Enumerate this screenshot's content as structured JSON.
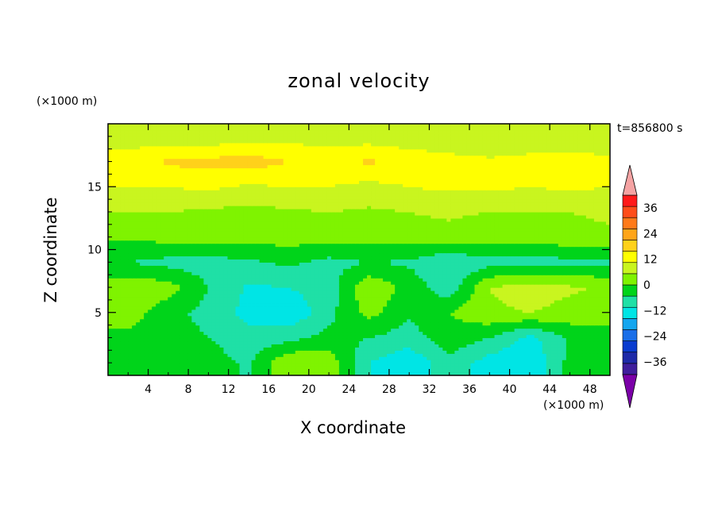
{
  "chart_data": {
    "type": "heatmap",
    "title": "zonal velocity",
    "xlabel": "X coordinate",
    "ylabel": "Z coordinate",
    "x_unit": "(×1000 m)",
    "y_unit": "(×1000 m)",
    "time_label": "t=856800 s",
    "xlim": [
      0,
      50
    ],
    "ylim": [
      0,
      20
    ],
    "x_ticks": [
      4,
      8,
      12,
      16,
      20,
      24,
      28,
      32,
      36,
      40,
      44,
      48
    ],
    "y_ticks": [
      5,
      10,
      15
    ],
    "colorbar": {
      "levels": [
        -42,
        -36,
        -30,
        -24,
        -18,
        -12,
        -6,
        0,
        6,
        12,
        18,
        24,
        30,
        36,
        42
      ],
      "tick_labels": [
        36,
        24,
        12,
        0,
        -12,
        -24,
        -36
      ],
      "colors": [
        "#7b00a8",
        "#3f1e9c",
        "#1e2aa8",
        "#0a3ccf",
        "#1a6fe8",
        "#14a6ef",
        "#00e5e5",
        "#1fe0a6",
        "#00d41a",
        "#7ff300",
        "#c9f51f",
        "#ffff00",
        "#ffd11a",
        "#ffa51a",
        "#ff7a1a",
        "#ff4d1a",
        "#ff1a1a",
        "#f5a3a3"
      ],
      "extend": "both"
    },
    "data_grid": {
      "x": [
        2,
        6,
        10,
        14,
        18,
        22,
        26,
        30,
        34,
        38,
        42,
        46,
        50
      ],
      "z": [
        1,
        3,
        5,
        7,
        9,
        11,
        13,
        15,
        17,
        19
      ],
      "values": [
        [
          -3,
          -4,
          -3,
          -7,
          6,
          4,
          -12,
          -17,
          -8,
          -15,
          -18,
          -4,
          -3
        ],
        [
          -2,
          -3,
          -6,
          -10,
          -8,
          -4,
          -6,
          -9,
          -2,
          -6,
          -14,
          -5,
          -2
        ],
        [
          3,
          -4,
          -8,
          -14,
          -17,
          -8,
          2,
          -5,
          0,
          5,
          6,
          4,
          2
        ],
        [
          4,
          3,
          -6,
          -13,
          -12,
          -9,
          5,
          -2,
          -10,
          6,
          9,
          7,
          5
        ],
        [
          -6,
          -8,
          -9,
          -7,
          -5,
          -8,
          -6,
          -7,
          -12,
          -8,
          -9,
          -8,
          -7
        ],
        [
          1,
          2,
          3,
          2,
          3,
          2,
          2,
          3,
          4,
          2,
          3,
          4,
          5
        ],
        [
          6,
          6,
          5,
          4,
          5,
          6,
          5,
          6,
          7,
          6,
          6,
          6,
          7
        ],
        [
          12,
          12,
          13,
          11,
          12,
          12,
          10,
          12,
          13,
          13,
          12,
          13,
          12
        ],
        [
          15,
          19,
          20,
          21,
          18,
          16,
          19,
          16,
          14,
          13,
          14,
          15,
          13
        ],
        [
          9,
          8,
          8,
          9,
          10,
          9,
          9,
          8,
          8,
          7,
          8,
          8,
          8
        ]
      ]
    }
  }
}
